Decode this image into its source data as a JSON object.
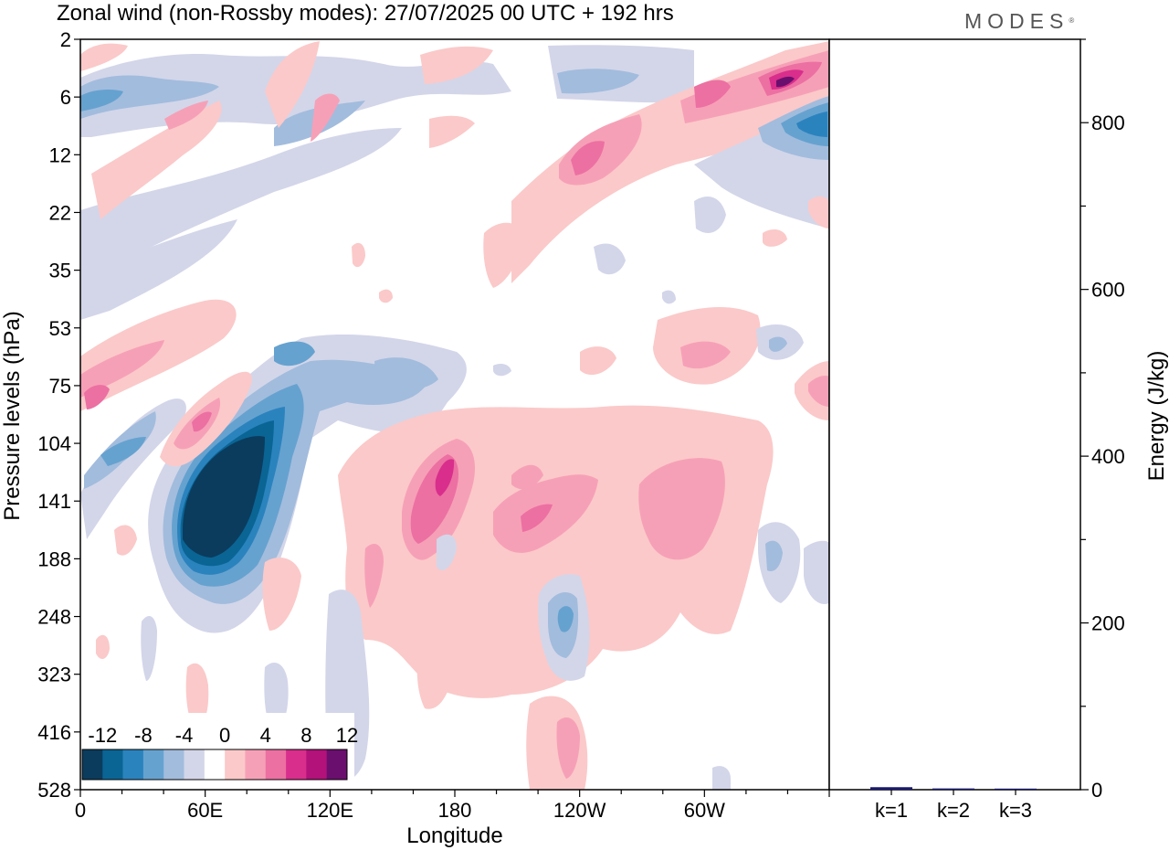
{
  "header": {
    "title": "Zonal wind (non-Rossby modes):  27/07/2025  00 UTC  + 192 hrs",
    "brand": "MODES"
  },
  "chart_data": [
    {
      "type": "heatmap",
      "title": "Zonal wind (non-Rossby modes):  27/07/2025  00 UTC  + 192 hrs",
      "xlabel": "Longitude",
      "ylabel": "Pressure levels (hPa)",
      "x_ticks": [
        "0",
        "60E",
        "120E",
        "180",
        "120W",
        "60W"
      ],
      "x_tick_degrees": [
        0,
        60,
        120,
        180,
        240,
        300
      ],
      "xlim": [
        0,
        360
      ],
      "y_levels": [
        "2",
        "6",
        "12",
        "22",
        "35",
        "53",
        "75",
        "104",
        "141",
        "188",
        "248",
        "323",
        "416",
        "528"
      ],
      "colorbar": {
        "labels": [
          "-12",
          "-8",
          "-4",
          "0",
          "4",
          "8",
          "12"
        ],
        "colors": [
          "#0b3c5d",
          "#0a6595",
          "#2b83be",
          "#66a2cf",
          "#a2bcdd",
          "#d3d6e9",
          "#ffffff",
          "#fbc9c9",
          "#f6a0b7",
          "#ec70a2",
          "#d92e8c",
          "#b2127a",
          "#6b0f6e"
        ]
      },
      "features": [
        {
          "sign": "negative",
          "peak": -14,
          "lon": 65,
          "level": "141"
        },
        {
          "sign": "positive",
          "peak": 11,
          "lon": 176,
          "level": "120"
        },
        {
          "sign": "positive",
          "peak": 14,
          "lon": 337,
          "level": "6"
        },
        {
          "sign": "negative",
          "peak": -11,
          "lon": 352,
          "level": "10"
        },
        {
          "sign": "positive",
          "peak": 9,
          "lon": 240,
          "level": "12"
        },
        {
          "sign": "positive",
          "peak": 9,
          "lon": 60,
          "level": "90"
        },
        {
          "sign": "positive",
          "peak": 8,
          "lon": 5,
          "level": "80"
        },
        {
          "sign": "negative",
          "peak": -9,
          "lon": 233,
          "level": "248"
        },
        {
          "sign": "positive",
          "peak": 9,
          "lon": 240,
          "level": "416"
        }
      ]
    },
    {
      "type": "bar",
      "ylabel": "Energy (J/kg)",
      "categories": [
        "k=1",
        "k=2",
        "k=3"
      ],
      "values": [
        3,
        1.5,
        1
      ],
      "ylim": [
        0,
        900
      ],
      "y_ticks": [
        "0",
        "200",
        "400",
        "600",
        "800"
      ],
      "y_tick_values": [
        0,
        200,
        400,
        600,
        800
      ],
      "bar_color": "#1a1a6e"
    }
  ]
}
